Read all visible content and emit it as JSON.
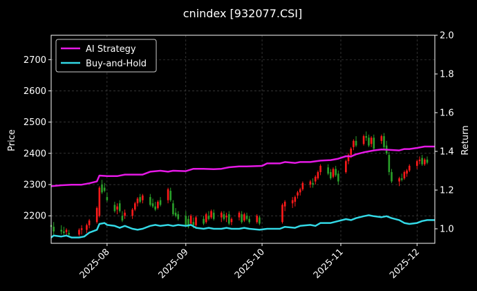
{
  "chart_data": {
    "type": "candlestick+line",
    "title": "cnindex [932077.CSI]",
    "ylabel_left": "Price",
    "ylabel_right": "Return",
    "price_ylim": [
      2112,
      2778
    ],
    "return_ylim": [
      0.925,
      2.0
    ],
    "grid": true,
    "legend_placement": "top-left",
    "x_ticks": [
      "2025-08",
      "2025-09",
      "2025-10",
      "2025-11",
      "2025-12"
    ],
    "y_ticks_left": [
      2200,
      2300,
      2400,
      2500,
      2600,
      2700
    ],
    "y_ticks_right": [
      "1.0",
      "1.2",
      "1.4",
      "1.6",
      "1.8",
      "2.0"
    ],
    "x_range": [
      "2025-07-10",
      "2025-12-08"
    ],
    "colors": {
      "up": "#ff1a1a",
      "down": "#2aa02a",
      "strategy": "#e619e6",
      "buyhold": "#33d9e6",
      "grid": "#555555"
    },
    "series": [
      {
        "name": "AI Strategy",
        "color": "#e619e6",
        "points": [
          [
            "2025-07-10",
            1.22
          ],
          [
            "2025-07-14",
            1.225
          ],
          [
            "2025-07-18",
            1.228
          ],
          [
            "2025-07-22",
            1.228
          ],
          [
            "2025-07-25",
            1.235
          ],
          [
            "2025-07-28",
            1.245
          ],
          [
            "2025-07-29",
            1.275
          ],
          [
            "2025-08-01",
            1.272
          ],
          [
            "2025-08-05",
            1.272
          ],
          [
            "2025-08-08",
            1.28
          ],
          [
            "2025-08-12",
            1.28
          ],
          [
            "2025-08-15",
            1.28
          ],
          [
            "2025-08-18",
            1.295
          ],
          [
            "2025-08-22",
            1.3
          ],
          [
            "2025-08-25",
            1.295
          ],
          [
            "2025-08-27",
            1.3
          ],
          [
            "2025-09-01",
            1.298
          ],
          [
            "2025-09-04",
            1.31
          ],
          [
            "2025-09-08",
            1.31
          ],
          [
            "2025-09-12",
            1.308
          ],
          [
            "2025-09-15",
            1.31
          ],
          [
            "2025-09-18",
            1.318
          ],
          [
            "2025-09-22",
            1.322
          ],
          [
            "2025-09-25",
            1.322
          ],
          [
            "2025-10-01",
            1.325
          ],
          [
            "2025-10-03",
            1.338
          ],
          [
            "2025-10-08",
            1.338
          ],
          [
            "2025-10-10",
            1.345
          ],
          [
            "2025-10-14",
            1.34
          ],
          [
            "2025-10-16",
            1.345
          ],
          [
            "2025-10-20",
            1.345
          ],
          [
            "2025-10-24",
            1.352
          ],
          [
            "2025-10-28",
            1.355
          ],
          [
            "2025-10-31",
            1.362
          ],
          [
            "2025-11-03",
            1.375
          ],
          [
            "2025-11-05",
            1.374
          ],
          [
            "2025-11-07",
            1.385
          ],
          [
            "2025-11-10",
            1.395
          ],
          [
            "2025-11-12",
            1.4
          ],
          [
            "2025-11-14",
            1.405
          ],
          [
            "2025-11-17",
            1.41
          ],
          [
            "2025-11-20",
            1.408
          ],
          [
            "2025-11-24",
            1.405
          ],
          [
            "2025-11-26",
            1.412
          ],
          [
            "2025-11-28",
            1.412
          ],
          [
            "2025-12-01",
            1.418
          ],
          [
            "2025-12-04",
            1.425
          ],
          [
            "2025-12-08",
            1.425
          ]
        ]
      },
      {
        "name": "Buy-and-Hold",
        "color": "#33d9e6",
        "points": [
          [
            "2025-07-10",
            0.955
          ],
          [
            "2025-07-11",
            0.965
          ],
          [
            "2025-07-14",
            0.96
          ],
          [
            "2025-07-16",
            0.965
          ],
          [
            "2025-07-18",
            0.955
          ],
          [
            "2025-07-21",
            0.955
          ],
          [
            "2025-07-23",
            0.96
          ],
          [
            "2025-07-25",
            0.98
          ],
          [
            "2025-07-28",
            0.995
          ],
          [
            "2025-07-29",
            1.025
          ],
          [
            "2025-07-31",
            1.03
          ],
          [
            "2025-08-01",
            1.02
          ],
          [
            "2025-08-04",
            1.015
          ],
          [
            "2025-08-06",
            1.005
          ],
          [
            "2025-08-08",
            1.015
          ],
          [
            "2025-08-11",
            1.0
          ],
          [
            "2025-08-13",
            0.995
          ],
          [
            "2025-08-15",
            1.0
          ],
          [
            "2025-08-18",
            1.015
          ],
          [
            "2025-08-20",
            1.02
          ],
          [
            "2025-08-22",
            1.015
          ],
          [
            "2025-08-25",
            1.02
          ],
          [
            "2025-08-27",
            1.015
          ],
          [
            "2025-08-29",
            1.02
          ],
          [
            "2025-09-01",
            1.015
          ],
          [
            "2025-09-03",
            1.02
          ],
          [
            "2025-09-05",
            1.005
          ],
          [
            "2025-09-08",
            1.0
          ],
          [
            "2025-09-10",
            1.005
          ],
          [
            "2025-09-12",
            1.0
          ],
          [
            "2025-09-15",
            1.0
          ],
          [
            "2025-09-17",
            1.005
          ],
          [
            "2025-09-19",
            1.0
          ],
          [
            "2025-09-22",
            1.0
          ],
          [
            "2025-09-24",
            1.005
          ],
          [
            "2025-09-26",
            1.0
          ],
          [
            "2025-09-30",
            0.995
          ],
          [
            "2025-10-03",
            1.0
          ],
          [
            "2025-10-08",
            1.0
          ],
          [
            "2025-10-10",
            1.01
          ],
          [
            "2025-10-14",
            1.005
          ],
          [
            "2025-10-16",
            1.015
          ],
          [
            "2025-10-20",
            1.02
          ],
          [
            "2025-10-22",
            1.015
          ],
          [
            "2025-10-24",
            1.03
          ],
          [
            "2025-10-28",
            1.03
          ],
          [
            "2025-10-31",
            1.04
          ],
          [
            "2025-11-03",
            1.05
          ],
          [
            "2025-11-05",
            1.045
          ],
          [
            "2025-11-07",
            1.055
          ],
          [
            "2025-11-10",
            1.065
          ],
          [
            "2025-11-12",
            1.07
          ],
          [
            "2025-11-14",
            1.065
          ],
          [
            "2025-11-17",
            1.06
          ],
          [
            "2025-11-19",
            1.065
          ],
          [
            "2025-11-21",
            1.055
          ],
          [
            "2025-11-24",
            1.045
          ],
          [
            "2025-11-26",
            1.03
          ],
          [
            "2025-11-28",
            1.025
          ],
          [
            "2025-12-01",
            1.03
          ],
          [
            "2025-12-03",
            1.04
          ],
          [
            "2025-12-05",
            1.045
          ],
          [
            "2025-12-08",
            1.045
          ]
        ]
      }
    ],
    "candles": [
      [
        "2025-07-10",
        2170,
        2185,
        2150,
        2165
      ],
      [
        "2025-07-11",
        2165,
        2180,
        2140,
        2150
      ],
      [
        "2025-07-14",
        2155,
        2170,
        2140,
        2150
      ],
      [
        "2025-07-15",
        2150,
        2165,
        2135,
        2145
      ],
      [
        "2025-07-16",
        2148,
        2160,
        2138,
        2155
      ],
      [
        "2025-07-17",
        2145,
        2155,
        2135,
        2140
      ],
      [
        "2025-07-21",
        2140,
        2160,
        2135,
        2155
      ],
      [
        "2025-07-22",
        2155,
        2170,
        2140,
        2160
      ],
      [
        "2025-07-24",
        2155,
        2175,
        2145,
        2170
      ],
      [
        "2025-07-25",
        2170,
        2190,
        2160,
        2185
      ],
      [
        "2025-07-28",
        2180,
        2230,
        2175,
        2225
      ],
      [
        "2025-07-29",
        2200,
        2295,
        2195,
        2290
      ],
      [
        "2025-07-30",
        2300,
        2315,
        2270,
        2275
      ],
      [
        "2025-07-31",
        2290,
        2305,
        2275,
        2280
      ],
      [
        "2025-08-01",
        2260,
        2275,
        2245,
        2250
      ],
      [
        "2025-08-04",
        2235,
        2245,
        2210,
        2215
      ],
      [
        "2025-08-05",
        2220,
        2240,
        2205,
        2230
      ],
      [
        "2025-08-06",
        2240,
        2250,
        2210,
        2215
      ],
      [
        "2025-08-07",
        2200,
        2215,
        2180,
        2185
      ],
      [
        "2025-08-08",
        2200,
        2220,
        2190,
        2210
      ],
      [
        "2025-08-11",
        2200,
        2225,
        2190,
        2220
      ],
      [
        "2025-08-12",
        2220,
        2245,
        2215,
        2240
      ],
      [
        "2025-08-13",
        2240,
        2260,
        2230,
        2255
      ],
      [
        "2025-08-14",
        2260,
        2270,
        2240,
        2245
      ],
      [
        "2025-08-15",
        2250,
        2270,
        2240,
        2265
      ],
      [
        "2025-08-18",
        2260,
        2270,
        2230,
        2235
      ],
      [
        "2025-08-19",
        2240,
        2255,
        2225,
        2230
      ],
      [
        "2025-08-20",
        2230,
        2245,
        2215,
        2220
      ],
      [
        "2025-08-21",
        2225,
        2250,
        2220,
        2245
      ],
      [
        "2025-08-22",
        2250,
        2260,
        2230,
        2235
      ],
      [
        "2025-08-25",
        2250,
        2290,
        2240,
        2285
      ],
      [
        "2025-08-26",
        2280,
        2290,
        2245,
        2250
      ],
      [
        "2025-08-27",
        2240,
        2250,
        2200,
        2205
      ],
      [
        "2025-08-28",
        2210,
        2225,
        2195,
        2200
      ],
      [
        "2025-08-29",
        2205,
        2215,
        2185,
        2190
      ],
      [
        "2025-09-01",
        2200,
        2215,
        2165,
        2170
      ],
      [
        "2025-09-02",
        2190,
        2200,
        2160,
        2165
      ],
      [
        "2025-09-03",
        2175,
        2205,
        2170,
        2200
      ],
      [
        "2025-09-04",
        2180,
        2195,
        2160,
        2170
      ],
      [
        "2025-09-05",
        2170,
        2200,
        2165,
        2195
      ],
      [
        "2025-09-08",
        2190,
        2200,
        2170,
        2175
      ],
      [
        "2025-09-09",
        2180,
        2210,
        2175,
        2205
      ],
      [
        "2025-09-10",
        2200,
        2215,
        2185,
        2190
      ],
      [
        "2025-09-11",
        2195,
        2220,
        2190,
        2215
      ],
      [
        "2025-09-12",
        2210,
        2220,
        2185,
        2190
      ],
      [
        "2025-09-15",
        2195,
        2215,
        2180,
        2210
      ],
      [
        "2025-09-16",
        2205,
        2215,
        2185,
        2190
      ],
      [
        "2025-09-17",
        2195,
        2210,
        2180,
        2200
      ],
      [
        "2025-09-18",
        2205,
        2215,
        2170,
        2175
      ],
      [
        "2025-09-19",
        2180,
        2195,
        2170,
        2190
      ],
      [
        "2025-09-22",
        2195,
        2215,
        2185,
        2210
      ],
      [
        "2025-09-23",
        2205,
        2215,
        2175,
        2180
      ],
      [
        "2025-09-24",
        2185,
        2210,
        2180,
        2205
      ],
      [
        "2025-09-25",
        2200,
        2210,
        2185,
        2190
      ],
      [
        "2025-09-26",
        2190,
        2200,
        2175,
        2180
      ],
      [
        "2025-09-29",
        2180,
        2205,
        2175,
        2200
      ],
      [
        "2025-09-30",
        2195,
        2200,
        2170,
        2175
      ],
      [
        "2025-10-09",
        2180,
        2240,
        2175,
        2235
      ],
      [
        "2025-10-10",
        2230,
        2250,
        2215,
        2245
      ],
      [
        "2025-10-13",
        2240,
        2260,
        2225,
        2250
      ],
      [
        "2025-10-14",
        2245,
        2265,
        2230,
        2260
      ],
      [
        "2025-10-15",
        2265,
        2280,
        2255,
        2275
      ],
      [
        "2025-10-16",
        2275,
        2290,
        2265,
        2285
      ],
      [
        "2025-10-17",
        2285,
        2310,
        2280,
        2305
      ],
      [
        "2025-10-20",
        2300,
        2315,
        2290,
        2310
      ],
      [
        "2025-10-21",
        2305,
        2320,
        2290,
        2300
      ],
      [
        "2025-10-22",
        2310,
        2330,
        2300,
        2325
      ],
      [
        "2025-10-23",
        2320,
        2345,
        2315,
        2340
      ],
      [
        "2025-10-24",
        2340,
        2365,
        2330,
        2360
      ],
      [
        "2025-10-27",
        2355,
        2365,
        2330,
        2335
      ],
      [
        "2025-10-28",
        2340,
        2350,
        2315,
        2320
      ],
      [
        "2025-10-29",
        2325,
        2355,
        2320,
        2350
      ],
      [
        "2025-10-30",
        2350,
        2360,
        2325,
        2330
      ],
      [
        "2025-10-31",
        2335,
        2345,
        2300,
        2310
      ],
      [
        "2025-11-03",
        2340,
        2380,
        2335,
        2375
      ],
      [
        "2025-11-04",
        2375,
        2400,
        2365,
        2395
      ],
      [
        "2025-11-05",
        2395,
        2420,
        2385,
        2415
      ],
      [
        "2025-11-06",
        2420,
        2445,
        2410,
        2440
      ],
      [
        "2025-11-07",
        2440,
        2455,
        2420,
        2425
      ],
      [
        "2025-11-10",
        2430,
        2460,
        2425,
        2455
      ],
      [
        "2025-11-11",
        2455,
        2470,
        2440,
        2450
      ],
      [
        "2025-11-12",
        2450,
        2460,
        2420,
        2425
      ],
      [
        "2025-11-13",
        2430,
        2455,
        2420,
        2450
      ],
      [
        "2025-11-14",
        2450,
        2460,
        2410,
        2415
      ],
      [
        "2025-11-17",
        2440,
        2460,
        2430,
        2455
      ],
      [
        "2025-11-18",
        2455,
        2465,
        2410,
        2420
      ],
      [
        "2025-11-19",
        2425,
        2440,
        2395,
        2400
      ],
      [
        "2025-11-20",
        2395,
        2405,
        2330,
        2340
      ],
      [
        "2025-11-21",
        2340,
        2350,
        2305,
        2310
      ],
      [
        "2025-11-24",
        2310,
        2325,
        2295,
        2320
      ],
      [
        "2025-11-25",
        2320,
        2335,
        2310,
        2315
      ],
      [
        "2025-11-26",
        2320,
        2345,
        2315,
        2340
      ],
      [
        "2025-11-27",
        2335,
        2350,
        2325,
        2345
      ],
      [
        "2025-11-28",
        2345,
        2365,
        2340,
        2360
      ],
      [
        "2025-12-01",
        2360,
        2380,
        2350,
        2375
      ],
      [
        "2025-12-02",
        2375,
        2390,
        2365,
        2380
      ],
      [
        "2025-12-03",
        2385,
        2395,
        2360,
        2365
      ],
      [
        "2025-12-04",
        2365,
        2385,
        2360,
        2380
      ],
      [
        "2025-12-05",
        2380,
        2390,
        2365,
        2370
      ]
    ]
  }
}
